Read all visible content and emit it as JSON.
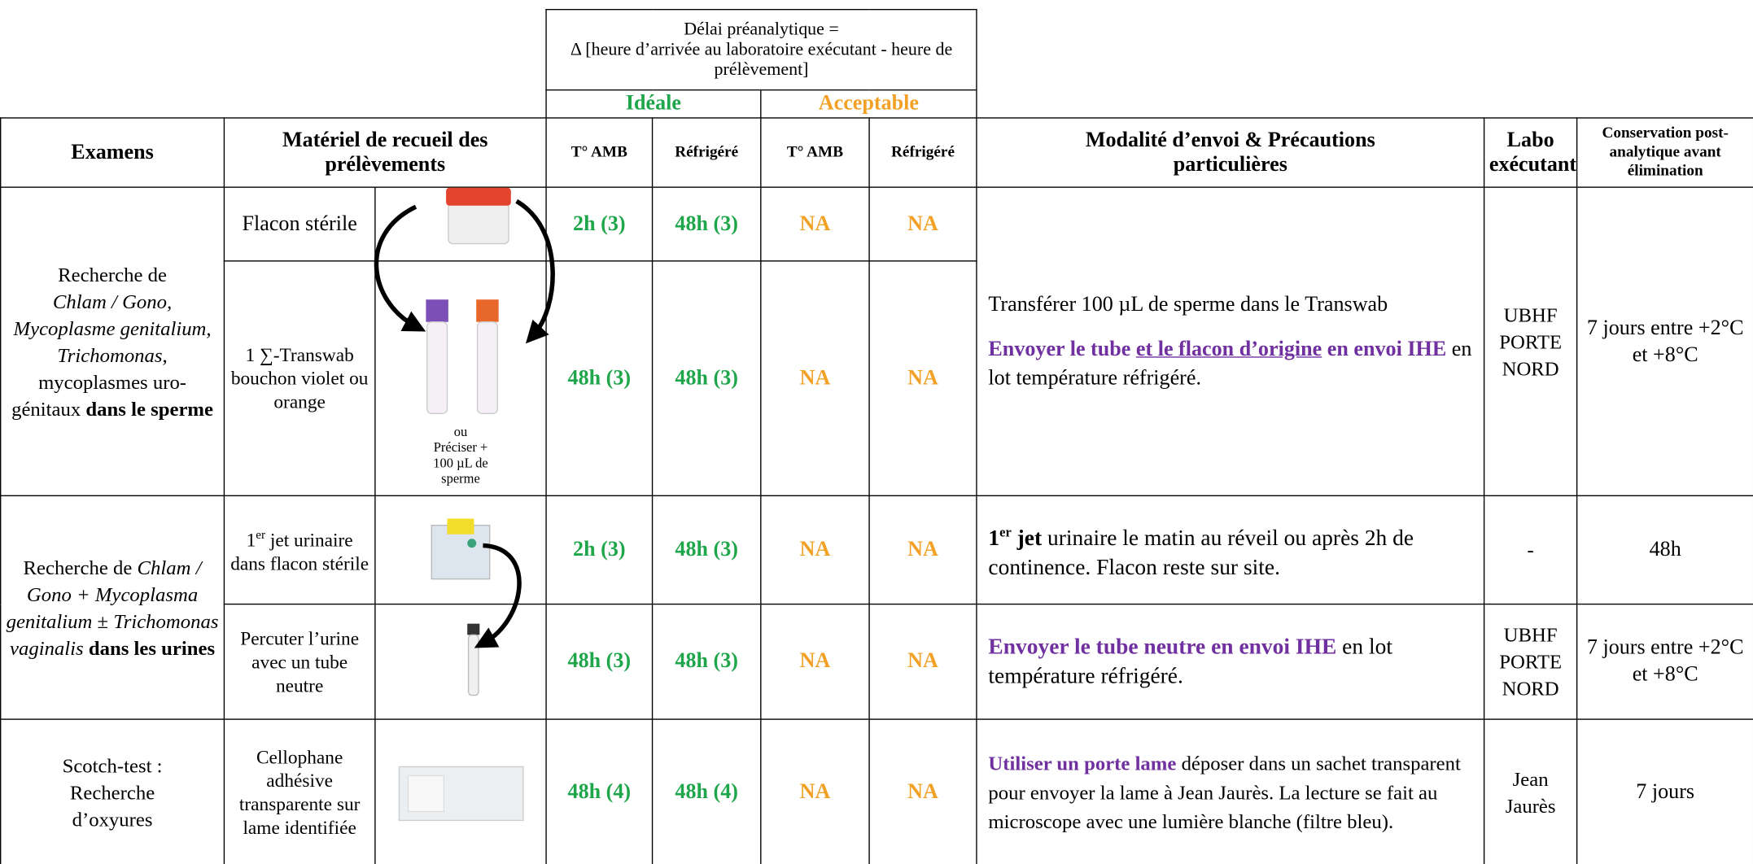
{
  "header": {
    "delay_title": "Délai préanalytique =",
    "delay_formula": "Δ [heure d’arrivée au laboratoire exécutant - heure de prélèvement]",
    "ideal": "Idéale",
    "acceptable": "Acceptable",
    "columns": [
      "Examens",
      "Matériel de recueil des prélèvements",
      "T° AMB",
      "Réfrigéré",
      "T° AMB",
      "Réfrigéré",
      "Modalité d’envoi & Précautions particulières",
      "Labo exécutant",
      "Conservation post-analytique avant élimination"
    ]
  },
  "rows": [
    {
      "exam": [
        "Recherche de ",
        "Chlam / Gono, Mycoplasme genitalium, Trichomonas",
        ", mycoplasmes uro-génitaux ",
        "dans le sperme"
      ],
      "items": [
        {
          "material": [
            "Flacon stérile"
          ],
          "delays": [
            "2h (3)",
            "48h (3)",
            "NA",
            "NA"
          ]
        },
        {
          "material": [
            "1 ∑-Transwab bouchon violet ou orange"
          ],
          "image_notes": [
            "ou",
            "Préciser + 100 µL de sperme"
          ],
          "delays": [
            "48h (3)",
            "48h (3)",
            "NA",
            "NA"
          ]
        }
      ],
      "sending": [
        [
          "Transférer 100 µL de sperme dans le Transwab"
        ],
        [
          "Envoyer le tube ",
          "et le flacon d’origine",
          " en envoi IHE",
          " en lot température réfrigéré."
        ]
      ],
      "lab": "UBHF PORTE NORD",
      "conservation": "7 jours entre +2°C et +8°C"
    },
    {
      "exam": [
        "Recherche de ",
        "Chlam / Gono + Mycoplasma genitalium ",
        "±",
        " Trichomonas vaginalis",
        " dans les urines"
      ],
      "items": [
        {
          "material": [
            "1",
            "er",
            " jet urinaire dans flacon stérile"
          ],
          "delays": [
            "2h (3)",
            "48h (3)",
            "NA",
            "NA"
          ],
          "sending": [
            "1",
            "er",
            " jet",
            " urinaire le matin au réveil ou après 2h de continence. Flacon reste sur site."
          ],
          "lab": "-",
          "conservation": "48h"
        },
        {
          "material": [
            "Percuter l’urine avec un tube neutre"
          ],
          "delays": [
            "48h (3)",
            "48h (3)",
            "NA",
            "NA"
          ],
          "sending": [
            "Envoyer le tube neutre en envoi IHE",
            " en lot température réfrigéré."
          ],
          "lab": "UBHF PORTE NORD",
          "conservation": "7 jours entre +2°C et +8°C"
        }
      ]
    },
    {
      "exam": [
        "Scotch-test : Recherche d’oxyures"
      ],
      "items": [
        {
          "material": [
            "Cellophane adhésive transparente sur lame identifiée"
          ],
          "delays": [
            "48h (4)",
            "48h (4)",
            "NA",
            "NA"
          ]
        }
      ],
      "sending": [
        "Utiliser un porte lame",
        " déposer dans un sachet transparent pour envoyer la lame à Jean Jaurès. La lecture se fait au microscope avec une lumière blanche (filtre bleu)."
      ],
      "lab": "Jean Jaurès",
      "conservation": "7 jours"
    }
  ]
}
